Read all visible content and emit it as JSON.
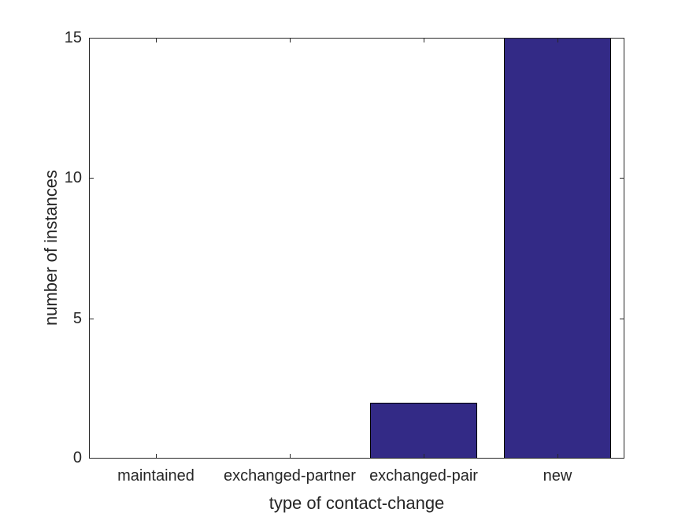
{
  "chart_data": {
    "type": "bar",
    "categories": [
      "maintained",
      "exchanged-partner",
      "exchanged-pair",
      "new"
    ],
    "values": [
      0,
      0,
      2,
      15
    ],
    "title": "",
    "xlabel": "type of contact-change",
    "ylabel": "number of instances",
    "ylim": [
      0,
      15
    ],
    "yticks": [
      0,
      5,
      10,
      15
    ],
    "bar_width_fraction": 0.8,
    "colors": {
      "bar_face": "#332a86",
      "bar_edge": "#000000",
      "axis": "#262626",
      "text": "#262626",
      "background": "#ffffff"
    },
    "grid": false,
    "legend": null,
    "tick_direction": "in"
  }
}
